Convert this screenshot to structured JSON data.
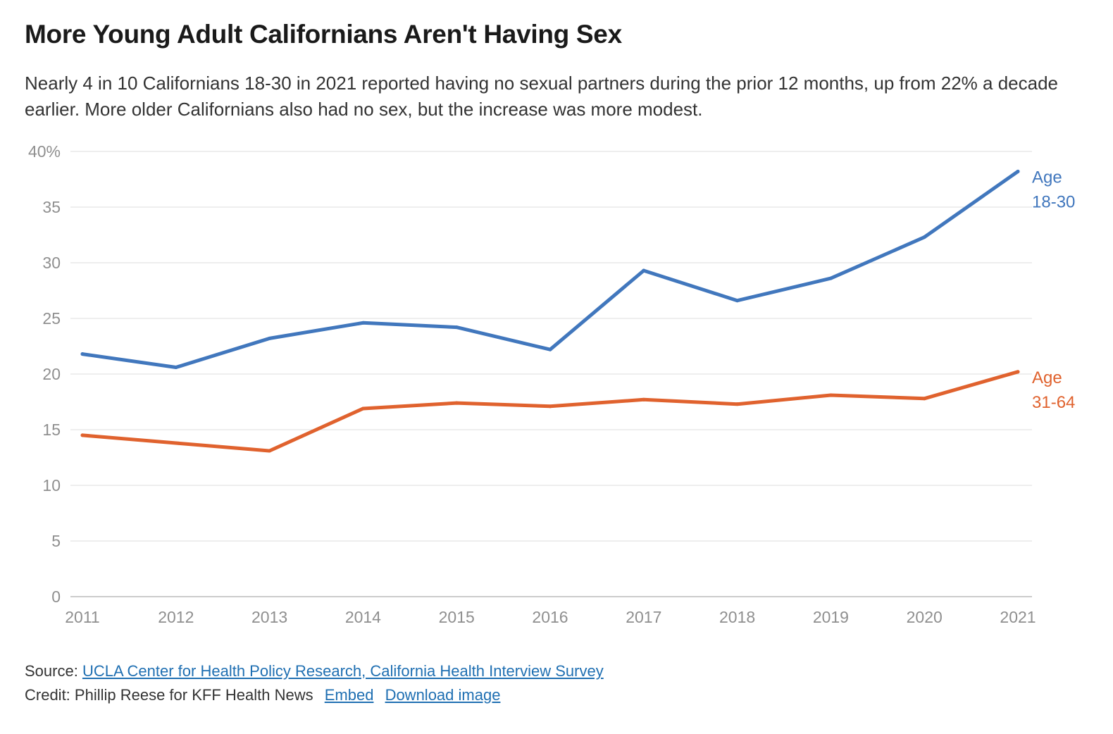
{
  "chart_data": {
    "type": "line",
    "title": "More Young Adult Californians Aren't Having Sex",
    "subtitle": "Nearly 4 in 10 Californians 18-30 in 2021 reported having no sexual partners during the prior 12 months, up from 22% a decade earlier. More older Californians also had no sex, but the increase was more modest.",
    "x": [
      "2011",
      "2012",
      "2013",
      "2014",
      "2015",
      "2016",
      "2017",
      "2018",
      "2019",
      "2020",
      "2021"
    ],
    "ylim": [
      0,
      40
    ],
    "y_ticks": [
      0,
      5,
      10,
      15,
      20,
      25,
      30,
      35,
      40
    ],
    "y_tick_labels": [
      "0",
      "5",
      "10",
      "15",
      "20",
      "25",
      "30",
      "35",
      "40%"
    ],
    "grid": true,
    "legend": "direct labels at line ends (right)",
    "series": [
      {
        "name": "Age 18-30",
        "label_lines": [
          "Age",
          "18-30"
        ],
        "color": "#4177bd",
        "values": [
          21.8,
          20.6,
          23.2,
          24.6,
          24.2,
          22.2,
          29.3,
          26.6,
          28.6,
          32.3,
          38.2
        ]
      },
      {
        "name": "Age 31-64",
        "label_lines": [
          "Age",
          "31-64"
        ],
        "color": "#e0622e",
        "values": [
          14.5,
          13.8,
          13.1,
          16.9,
          17.4,
          17.1,
          17.7,
          17.3,
          18.1,
          17.8,
          20.2
        ]
      }
    ]
  },
  "footer": {
    "source_prefix": "Source:",
    "source_link": "UCLA Center for Health Policy Research, California Health Interview Survey",
    "credit": "Credit: Phillip Reese for KFF Health News",
    "embed_link": "Embed",
    "download_link": "Download image"
  },
  "colors": {
    "grid": "#dddddd",
    "axis": "#bbbbbb",
    "tick_text": "#8f8f8f",
    "link": "#1f6fb2"
  }
}
